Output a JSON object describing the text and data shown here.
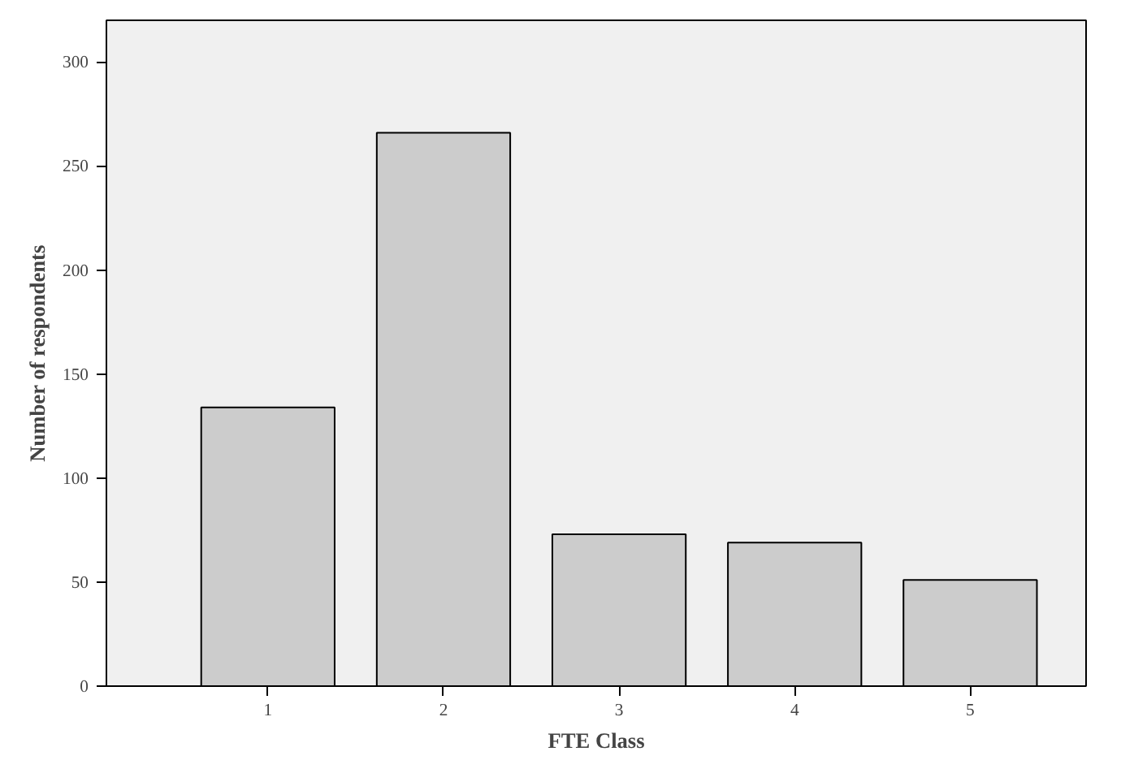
{
  "chart_data": {
    "type": "bar",
    "xlabel": "FTE Class",
    "ylabel": "Number of respondents",
    "categories": [
      "1",
      "2",
      "3",
      "4",
      "5"
    ],
    "values": [
      134,
      266,
      73,
      69,
      51
    ],
    "color": "#cccccc",
    "ylim": [
      0,
      320
    ],
    "yticks": [
      0,
      50,
      100,
      150,
      200,
      250,
      300
    ],
    "grid": false
  }
}
